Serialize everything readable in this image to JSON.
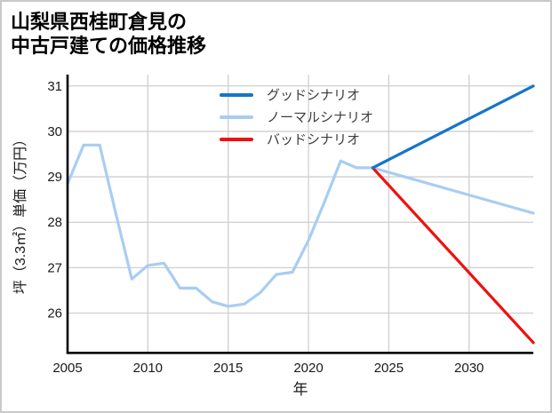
{
  "header": {
    "title_line1": "山梨県西桂町倉見の",
    "title_line2": "中古戸建ての価格推移"
  },
  "chart_data": {
    "type": "line",
    "title": "山梨県西桂町倉見の中古戸建ての価格推移",
    "xlabel": "年",
    "ylabel": "坪（3.3㎡）単価（万円）",
    "xlim": [
      2005,
      2034
    ],
    "ylim": [
      25.15,
      31.25
    ],
    "xticks": [
      2005,
      2010,
      2015,
      2020,
      2025,
      2030
    ],
    "yticks": [
      26,
      27,
      28,
      29,
      30,
      31
    ],
    "grid": true,
    "legend_position": "upper center (inside plot, no frame)",
    "colors": {
      "good": "#1575cb",
      "normal": "#a8cdf3",
      "bad": "#f01010",
      "grid": "#cfcfcf",
      "axis": "#000000",
      "tick_text": "#1a1a1a",
      "legend_text": "#3d3d3d"
    },
    "series": [
      {
        "id": "historical",
        "legend": false,
        "color": "#a8cdf3",
        "x": [
          2005,
          2006,
          2007,
          2008,
          2009,
          2010,
          2011,
          2012,
          2013,
          2014,
          2015,
          2016,
          2017,
          2018,
          2019,
          2020,
          2021,
          2022,
          2023,
          2024
        ],
        "y": [
          28.85,
          29.7,
          29.7,
          28.2,
          26.75,
          27.05,
          27.1,
          26.55,
          26.55,
          26.25,
          26.15,
          26.2,
          26.45,
          26.85,
          26.9,
          27.6,
          28.45,
          29.35,
          29.2,
          29.2
        ]
      },
      {
        "id": "good",
        "legend": true,
        "name": "グッドシナリオ",
        "color": "#1575cb",
        "x": [
          2024,
          2034
        ],
        "y": [
          29.2,
          31.0
        ]
      },
      {
        "id": "normal",
        "legend": true,
        "name": "ノーマルシナリオ",
        "color": "#a8cdf3",
        "x": [
          2024,
          2034
        ],
        "y": [
          29.2,
          28.2
        ]
      },
      {
        "id": "bad",
        "legend": true,
        "name": "バッドシナリオ",
        "color": "#f01010",
        "x": [
          2024,
          2034
        ],
        "y": [
          29.2,
          25.35
        ]
      }
    ]
  }
}
